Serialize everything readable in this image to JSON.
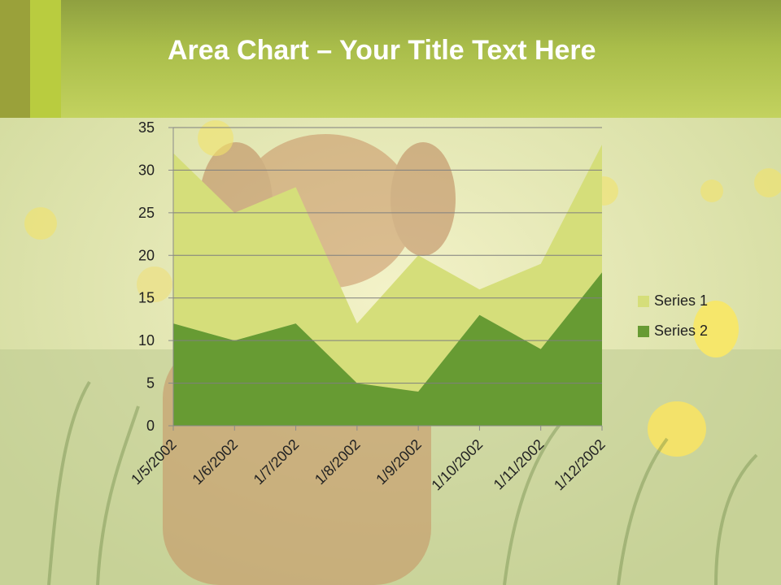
{
  "slide": {
    "title_bold": "Area Chart",
    "title_rest": " – Your Title Text Here"
  },
  "chart_data": {
    "type": "area",
    "stacked": true,
    "title": "",
    "xlabel": "",
    "ylabel": "",
    "categories": [
      "1/5/2002",
      "1/6/2002",
      "1/7/2002",
      "1/8/2002",
      "1/9/2002",
      "1/10/2002",
      "1/11/2002",
      "1/12/2002"
    ],
    "series": [
      {
        "name": "Series 1",
        "values": [
          20,
          15,
          16,
          7,
          16,
          3,
          10,
          15
        ],
        "color": "#d5de7a"
      },
      {
        "name": "Series 2",
        "values": [
          12,
          10,
          12,
          5,
          4,
          13,
          9,
          18
        ],
        "color": "#679b33"
      }
    ],
    "ylim": [
      0,
      35
    ],
    "yticks": [
      0,
      5,
      10,
      15,
      20,
      25,
      30,
      35
    ],
    "grid": true,
    "legend_position": "right"
  },
  "colors": {
    "header": "#b9cc3f",
    "axis": "#8a8a8a",
    "gridline": "#7f7f7f",
    "text": "#222222"
  }
}
